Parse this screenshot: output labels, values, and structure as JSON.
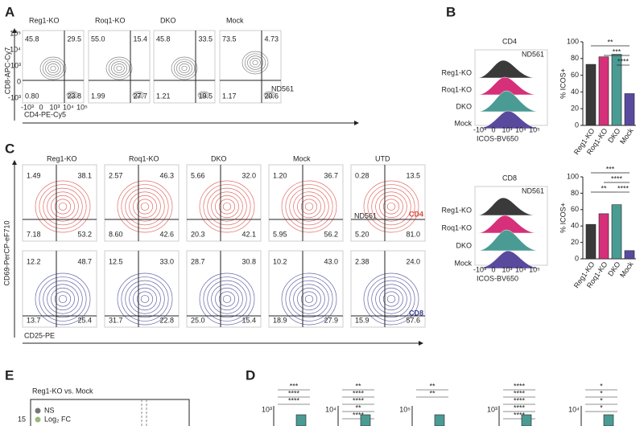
{
  "A": {
    "label": "A",
    "y_axis": "CD8-APC-Cy7",
    "x_axis": "CD4-PE-Cy5",
    "annotation": "ND561",
    "yticks": [
      "10⁵",
      "10⁴",
      "10³",
      "0",
      "-10³"
    ],
    "xticks": [
      "-10³",
      "0",
      "10³",
      "10⁴",
      "10⁵"
    ],
    "plots": [
      {
        "title": "Reg1-KO",
        "quadrants": [
          "45.8",
          "29.5",
          "0.80",
          "23.8"
        ]
      },
      {
        "title": "Roq1-KO",
        "quadrants": [
          "55.0",
          "15.4",
          "1.99",
          "27.7"
        ]
      },
      {
        "title": "DKO",
        "quadrants": [
          "45.8",
          "33.5",
          "1.21",
          "19.5"
        ]
      },
      {
        "title": "Mock",
        "quadrants": [
          "73.5",
          "4.73",
          "1.17",
          "20.6"
        ]
      }
    ]
  },
  "B": {
    "label": "B",
    "panels": [
      {
        "title": "CD4",
        "annotation": "ND561",
        "rows": [
          "Reg1-KO",
          "Roq1-KO",
          "DKO",
          "Mock"
        ],
        "x_axis": "ICOS-BV650",
        "xticks": [
          "-10³",
          "0",
          "10³",
          "10⁴",
          "10⁵"
        ],
        "y_axis": "% ICOS+",
        "ylim": [
          0,
          100
        ],
        "yticks": [
          0,
          20,
          40,
          60,
          80,
          100
        ],
        "categories": [
          "Reg1-KO",
          "Roq1-KO",
          "DKO",
          "Mock"
        ],
        "values": [
          73,
          82,
          85,
          38
        ],
        "colors": [
          "#3a3a3a",
          "#d6307a",
          "#4a9b94",
          "#5a4a9e"
        ],
        "significance": [
          "**",
          "***",
          "****"
        ]
      },
      {
        "title": "CD8",
        "annotation": "ND561",
        "rows": [
          "Reg1-KO",
          "Roq1-KO",
          "DKO",
          "Mock"
        ],
        "x_axis": "ICOS-BV650",
        "xticks": [
          "-10³",
          "0",
          "10³",
          "10⁴",
          "10⁵"
        ],
        "y_axis": "% ICOS+",
        "ylim": [
          0,
          100
        ],
        "yticks": [
          0,
          20,
          40,
          60,
          80,
          100
        ],
        "categories": [
          "Reg1-KO",
          "Roq1-KO",
          "DKO",
          "Mock"
        ],
        "values": [
          42,
          55,
          66,
          10
        ],
        "colors": [
          "#3a3a3a",
          "#d6307a",
          "#4a9b94",
          "#5a4a9e"
        ],
        "significance": [
          "***",
          "****",
          "**",
          "****"
        ]
      }
    ]
  },
  "C": {
    "label": "C",
    "y_axis": "CD69-PerCP-eF710",
    "x_axis": "CD25-PE",
    "annotation": "ND561",
    "titles": [
      "Reg1-KO",
      "Roq1-KO",
      "DKO",
      "Mock",
      "UTD"
    ],
    "rows": [
      {
        "label": "CD4",
        "color": "#d9463f",
        "quadrants": [
          [
            "1.49",
            "38.1",
            "7.18",
            "53.2"
          ],
          [
            "2.57",
            "46.3",
            "8.60",
            "42.6"
          ],
          [
            "5.66",
            "32.0",
            "20.3",
            "42.1"
          ],
          [
            "1.20",
            "36.7",
            "5.95",
            "56.2"
          ],
          [
            "0.28",
            "13.5",
            "5.20",
            "81.0"
          ]
        ]
      },
      {
        "label": "CD8",
        "color": "#3b3f8f",
        "quadrants": [
          [
            "12.2",
            "48.7",
            "13.7",
            "25.4"
          ],
          [
            "12.5",
            "33.0",
            "31.7",
            "22.8"
          ],
          [
            "28.7",
            "30.8",
            "25.0",
            "15.4"
          ],
          [
            "10.2",
            "43.0",
            "18.9",
            "27.9"
          ],
          [
            "2.38",
            "24.0",
            "15.9",
            "57.6"
          ]
        ]
      }
    ]
  },
  "E": {
    "label": "E",
    "title": "Reg1-KO vs. Mock",
    "legend": [
      "NS",
      "Log₂ FC"
    ],
    "yticks": [
      "15"
    ]
  },
  "D": {
    "label": "D",
    "plots": [
      {
        "ytick": "10³",
        "stars": [
          "***",
          "****",
          "****"
        ]
      },
      {
        "ytick": "10⁴",
        "stars": [
          "**",
          "****",
          "****",
          "**",
          "****"
        ]
      },
      {
        "ytick": "10⁵",
        "stars": [
          "**",
          "**"
        ]
      },
      {
        "ytick": "10³",
        "stars": [
          "****",
          "****",
          "****",
          "****",
          "****"
        ]
      },
      {
        "ytick": "10⁴",
        "stars": [
          "*",
          "*",
          "*",
          "*"
        ]
      }
    ]
  }
}
